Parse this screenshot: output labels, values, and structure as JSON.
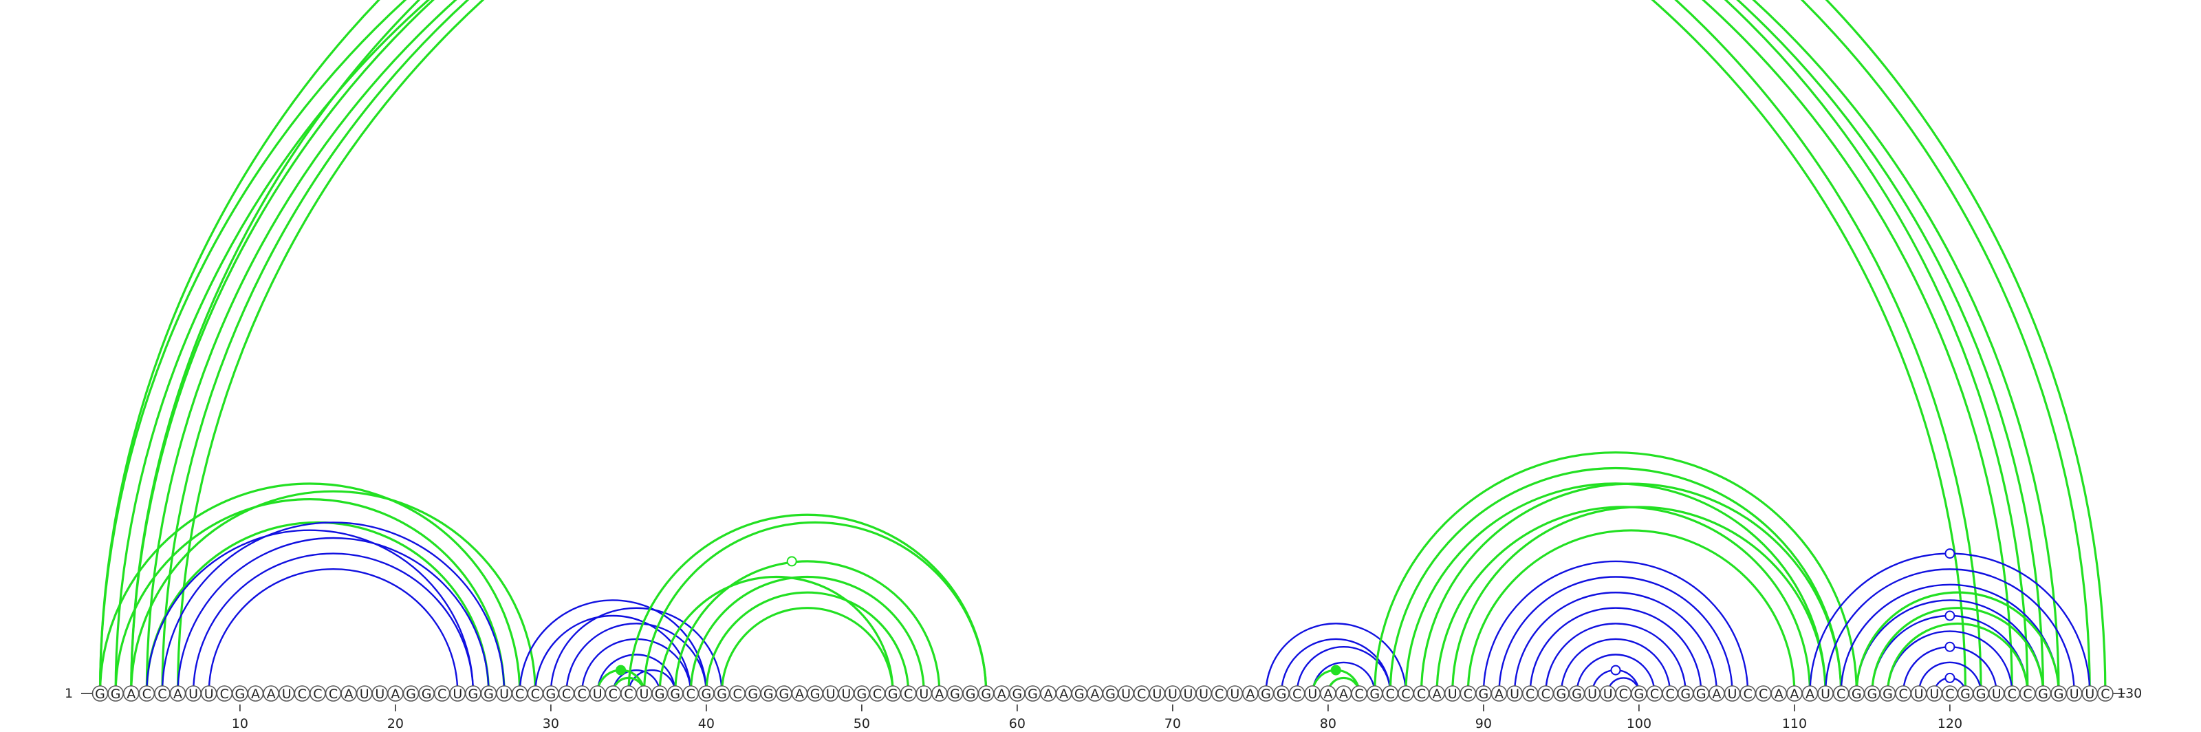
{
  "diagram": {
    "sequence": "GGACCAUUCGAAUCCCAUUAGGCUGGUCCGCCUCCUGGCGGCGGGAGUUGCGCUAGGGAGGAAGAGUCUUUUCUAGGCUAACGCCCAUCGAUCCGGUUCGCCGGAUCCAAAUCGGGCUUCGGUCCGGUUC",
    "start_label": "1",
    "end_label": "130",
    "tick_positions": [
      10,
      20,
      30,
      40,
      50,
      60,
      70,
      80,
      90,
      100,
      110,
      120
    ],
    "tick_labels": [
      "10",
      "20",
      "30",
      "40",
      "50",
      "60",
      "70",
      "80",
      "90",
      "100",
      "110",
      "120"
    ],
    "colors": {
      "green": "#22e022",
      "blue": "#1010e0",
      "circle_stroke": "#555555",
      "text": "#222222"
    },
    "arc_groups": [
      {
        "color": "green",
        "pairs": [
          [
            1,
            122
          ],
          [
            2,
            121
          ],
          [
            3,
            125
          ],
          [
            4,
            124
          ],
          [
            5,
            126
          ],
          [
            6,
            127
          ],
          [
            1,
            130
          ],
          [
            3,
            129
          ]
        ]
      },
      {
        "color": "green",
        "pairs": [
          [
            1,
            28
          ],
          [
            2,
            27
          ],
          [
            3,
            29
          ],
          [
            4,
            26
          ]
        ]
      },
      {
        "color": "blue",
        "pairs": [
          [
            4,
            25
          ],
          [
            5,
            27
          ],
          [
            6,
            26
          ],
          [
            7,
            25
          ],
          [
            8,
            24
          ]
        ]
      },
      {
        "color": "blue",
        "pairs": [
          [
            28,
            40
          ],
          [
            29,
            39
          ],
          [
            30,
            41
          ],
          [
            31,
            40
          ],
          [
            32,
            39
          ],
          [
            33,
            38
          ],
          [
            34,
            37
          ],
          [
            35,
            38
          ]
        ]
      },
      {
        "color": "green",
        "pairs": [
          [
            33,
            36
          ],
          [
            34,
            36
          ],
          [
            35,
            58
          ],
          [
            36,
            58
          ],
          [
            37,
            52
          ],
          [
            38,
            55
          ],
          [
            39,
            54
          ],
          [
            40,
            53
          ],
          [
            41,
            52
          ]
        ]
      },
      {
        "color": "blue",
        "pairs": [
          [
            76,
            85
          ],
          [
            77,
            84
          ],
          [
            78,
            84
          ],
          [
            79,
            83
          ]
        ]
      },
      {
        "color": "green",
        "pairs": [
          [
            79,
            82
          ],
          [
            80,
            82
          ],
          [
            83,
            114
          ],
          [
            84,
            113
          ],
          [
            85,
            112
          ],
          [
            86,
            113
          ],
          [
            87,
            111
          ],
          [
            88,
            112
          ],
          [
            89,
            110
          ]
        ]
      },
      {
        "color": "blue",
        "pairs": [
          [
            90,
            107
          ],
          [
            91,
            106
          ],
          [
            92,
            105
          ],
          [
            93,
            104
          ],
          [
            94,
            103
          ],
          [
            95,
            102
          ],
          [
            96,
            101
          ],
          [
            97,
            100
          ],
          [
            98,
            100
          ]
        ]
      },
      {
        "color": "blue",
        "pairs": [
          [
            111,
            129
          ],
          [
            112,
            128
          ],
          [
            113,
            127
          ],
          [
            114,
            126
          ],
          [
            115,
            125
          ],
          [
            116,
            124
          ],
          [
            117,
            123
          ],
          [
            118,
            122
          ],
          [
            119,
            121
          ]
        ]
      },
      {
        "color": "green",
        "pairs": [
          [
            114,
            127
          ],
          [
            115,
            126
          ],
          [
            116,
            125
          ]
        ]
      }
    ],
    "markers": [
      {
        "i": 1,
        "j": 130,
        "color": "green",
        "filled": false
      },
      {
        "i": 37,
        "j": 54,
        "color": "green",
        "filled": false
      },
      {
        "i": 33,
        "j": 36,
        "color": "green",
        "filled": true
      },
      {
        "i": 79,
        "j": 82,
        "color": "green",
        "filled": true
      },
      {
        "i": 97,
        "j": 100,
        "color": "blue",
        "filled": false
      },
      {
        "i": 111,
        "j": 129,
        "color": "blue",
        "filled": false
      },
      {
        "i": 115,
        "j": 125,
        "color": "blue",
        "filled": false
      },
      {
        "i": 117,
        "j": 123,
        "color": "blue",
        "filled": false
      },
      {
        "i": 119,
        "j": 121,
        "color": "blue",
        "filled": false
      }
    ]
  }
}
